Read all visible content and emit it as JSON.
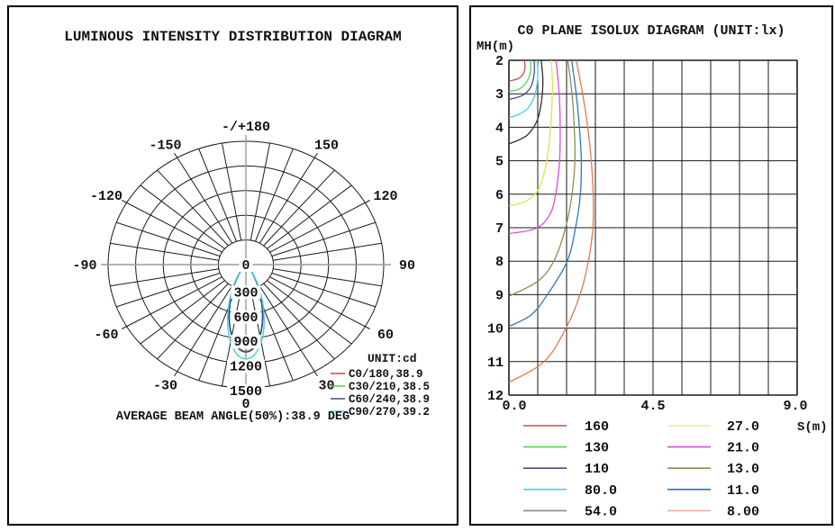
{
  "chart_data": [
    {
      "type": "line",
      "variant": "polar-intensity",
      "title": "LUMINOUS INTENSITY DISTRIBUTION DIAGRAM",
      "legend_title": "UNIT:cd",
      "footer": "AVERAGE BEAM ANGLE(50%):38.9 DEG",
      "radial_axis": {
        "ticks": [
          0,
          300,
          600,
          900,
          1200,
          1500
        ],
        "max": 1500,
        "unit": "cd"
      },
      "angle_ticks": [
        {
          "deg": -150,
          "label": "-150"
        },
        {
          "deg": -120,
          "label": "-120"
        },
        {
          "deg": -90,
          "label": "-90"
        },
        {
          "deg": -60,
          "label": "-60"
        },
        {
          "deg": -30,
          "label": "-30"
        },
        {
          "deg": 0,
          "label": "0"
        },
        {
          "deg": 30,
          "label": "30"
        },
        {
          "deg": 60,
          "label": "60"
        },
        {
          "deg": 90,
          "label": "90"
        },
        {
          "deg": 120,
          "label": "120"
        },
        {
          "deg": 150,
          "label": "150"
        },
        {
          "deg": 180,
          "label": "-/+180"
        }
      ],
      "grid": {
        "rings": 5,
        "ring_step_cd": 300,
        "spoke_step_deg": 10
      },
      "series": [
        {
          "label": "C0/180,38.9",
          "plane": "C0/180",
          "beam_angle_deg": 38.9,
          "color": "#c23c3c",
          "peak_cd": 1055,
          "sigma_deg": 16.5
        },
        {
          "label": "C30/210,38.5",
          "plane": "C30/210",
          "beam_angle_deg": 38.5,
          "color": "#3cc83c",
          "peak_cd": 1060,
          "sigma_deg": 16.3
        },
        {
          "label": "C60/240,38.9",
          "plane": "C60/240",
          "beam_angle_deg": 38.9,
          "color": "#3c3c8c",
          "peak_cd": 1065,
          "sigma_deg": 16.5
        },
        {
          "label": "C90/270,39.2",
          "plane": "C90/270",
          "beam_angle_deg": 39.2,
          "color": "#3cd2e6",
          "peak_cd": 1150,
          "sigma_deg": 16.6
        }
      ]
    },
    {
      "type": "line",
      "variant": "isolux",
      "title": "C0 PLANE ISOLUX DIAGRAM (UNIT:lx)",
      "xlabel": "S(m)",
      "ylabel": "MH(m)",
      "xlim": [
        0,
        9
      ],
      "ylim": [
        2,
        12
      ],
      "x_ticks": [
        {
          "v": 0,
          "label": "0.0"
        },
        {
          "v": 4.5,
          "label": "4.5"
        },
        {
          "v": 9,
          "label": "9.0"
        }
      ],
      "y_ticks": [
        2,
        3,
        4,
        5,
        6,
        7,
        8,
        9,
        10,
        11,
        12
      ],
      "grid": {
        "cols": 10,
        "rows": 10
      },
      "series": [
        {
          "label": "160",
          "lux": 160,
          "color": "#c24f4f",
          "points_s_mh": [
            [
              0.48,
              2
            ],
            [
              0.5,
              2.2
            ],
            [
              0.45,
              2.4
            ],
            [
              0.28,
              2.55
            ],
            [
              0,
              2.62
            ]
          ]
        },
        {
          "label": "130",
          "lux": 130,
          "color": "#54d654",
          "points_s_mh": [
            [
              0.67,
              2
            ],
            [
              0.68,
              2.3
            ],
            [
              0.58,
              2.6
            ],
            [
              0.34,
              2.85
            ],
            [
              0,
              2.93
            ]
          ]
        },
        {
          "label": "110",
          "lux": 110,
          "color": "#4a4a8c",
          "points_s_mh": [
            [
              0.79,
              2
            ],
            [
              0.79,
              2.4
            ],
            [
              0.68,
              2.8
            ],
            [
              0.42,
              3.05
            ],
            [
              0,
              3.17
            ]
          ]
        },
        {
          "label": "80.0",
          "lux": 80,
          "color": "#3fd6e8",
          "points_s_mh": [
            [
              0.88,
              2
            ],
            [
              0.9,
              2.5
            ],
            [
              0.82,
              3.0
            ],
            [
              0.62,
              3.4
            ],
            [
              0.34,
              3.6
            ],
            [
              0,
              3.72
            ]
          ]
        },
        {
          "label": "54.0",
          "lux": 54,
          "color": "#2e2e2e",
          "legend_color": "#8a8a8a",
          "points_s_mh": [
            [
              1.01,
              2
            ],
            [
              1.06,
              2.6
            ],
            [
              1.02,
              3.2
            ],
            [
              0.88,
              3.8
            ],
            [
              0.55,
              4.25
            ],
            [
              0,
              4.5
            ]
          ]
        },
        {
          "label": "27.0",
          "lux": 27,
          "color": "#e2e24a",
          "legend_color": "#ececa0",
          "points_s_mh": [
            [
              1.32,
              2
            ],
            [
              1.36,
              2.8
            ],
            [
              1.3,
              4
            ],
            [
              1.18,
              5
            ],
            [
              0.95,
              5.8
            ],
            [
              0.55,
              6.2
            ],
            [
              0,
              6.35
            ]
          ]
        },
        {
          "label": "21.0",
          "lux": 21,
          "color": "#d94fd9",
          "points_s_mh": [
            [
              1.47,
              2
            ],
            [
              1.57,
              3
            ],
            [
              1.6,
              4
            ],
            [
              1.58,
              5
            ],
            [
              1.46,
              6
            ],
            [
              1.28,
              6.6
            ],
            [
              0.85,
              7.02
            ],
            [
              0,
              7.18
            ]
          ]
        },
        {
          "label": "13.0",
          "lux": 13,
          "color": "#8c8c50",
          "points_s_mh": [
            [
              1.84,
              2
            ],
            [
              1.97,
              3
            ],
            [
              2.04,
              4
            ],
            [
              2.06,
              5
            ],
            [
              1.97,
              6
            ],
            [
              1.77,
              7
            ],
            [
              1.4,
              8
            ],
            [
              0.9,
              8.6
            ],
            [
              0,
              9.05
            ]
          ]
        },
        {
          "label": "11.0",
          "lux": 11,
          "color": "#2e78b8",
          "points_s_mh": [
            [
              1.96,
              2
            ],
            [
              2.1,
              3
            ],
            [
              2.2,
              4
            ],
            [
              2.26,
              5
            ],
            [
              2.23,
              6
            ],
            [
              2.08,
              7
            ],
            [
              1.82,
              8
            ],
            [
              1.2,
              9
            ],
            [
              0.7,
              9.6
            ],
            [
              0,
              9.95
            ]
          ]
        },
        {
          "label": "8.00",
          "lux": 8,
          "color": "#e07a50",
          "legend_color": "#eab094",
          "points_s_mh": [
            [
              2.1,
              2
            ],
            [
              2.3,
              3
            ],
            [
              2.46,
              4
            ],
            [
              2.57,
              5
            ],
            [
              2.63,
              6
            ],
            [
              2.62,
              7
            ],
            [
              2.48,
              8
            ],
            [
              2.22,
              9
            ],
            [
              1.78,
              10
            ],
            [
              1.1,
              11
            ],
            [
              0,
              11.62
            ]
          ]
        }
      ]
    }
  ]
}
